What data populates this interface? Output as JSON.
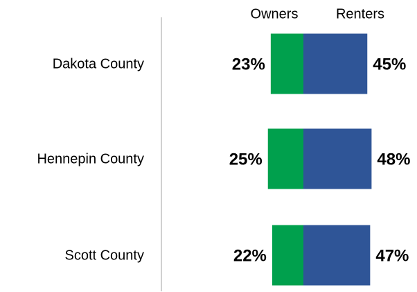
{
  "chart_data": {
    "type": "bar",
    "categories": [
      "Dakota County",
      "Hennepin County",
      "Scott County"
    ],
    "series": [
      {
        "name": "Owners",
        "color": "#00a04d",
        "values": [
          23,
          25,
          22
        ],
        "value_labels": [
          "23%",
          "25%",
          "22%"
        ]
      },
      {
        "name": "Renters",
        "color": "#2f5597",
        "values": [
          45,
          48,
          47
        ],
        "value_labels": [
          "45%",
          "48%",
          "47%"
        ]
      }
    ]
  }
}
